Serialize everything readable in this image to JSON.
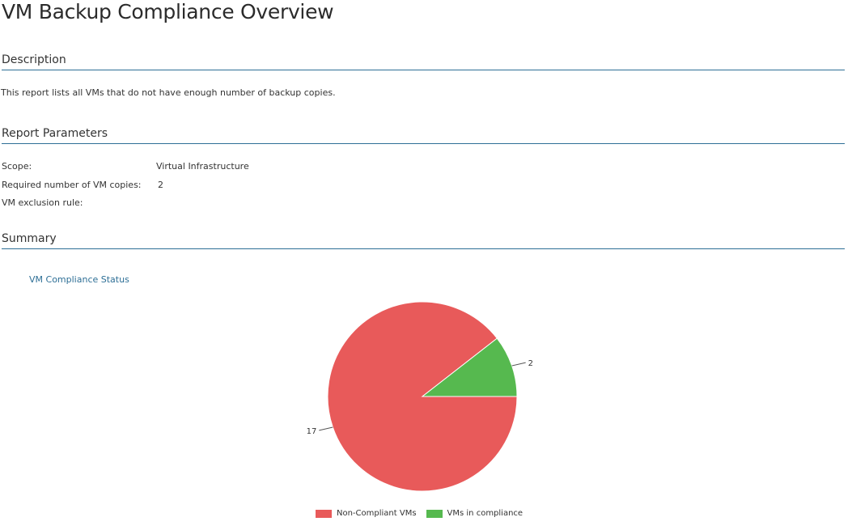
{
  "page": {
    "title": "VM Backup Compliance Overview"
  },
  "description": {
    "header": "Description",
    "text": "This report lists all VMs that do not have enough number of backup copies."
  },
  "parameters": {
    "header": "Report Parameters",
    "items": [
      {
        "label": "Scope:",
        "value": "Virtual Infrastructure"
      },
      {
        "label": "Required number of VM copies:",
        "value": "2"
      },
      {
        "label": "VM exclusion rule:",
        "value": ""
      }
    ]
  },
  "summary": {
    "header": "Summary",
    "chart_title": "VM Compliance Status"
  },
  "colors": {
    "accent": "#2e6f96",
    "non_compliant": "#e85a5a",
    "compliant": "#56b94f"
  },
  "chart_data": {
    "type": "pie",
    "title": "VM Compliance Status",
    "categories": [
      "Non-Compliant VMs",
      "VMs in compliance"
    ],
    "values": [
      17,
      2
    ],
    "colors": [
      "#e85a5a",
      "#56b94f"
    ],
    "data_labels": [
      "17",
      "2"
    ],
    "legend": "bottom"
  }
}
